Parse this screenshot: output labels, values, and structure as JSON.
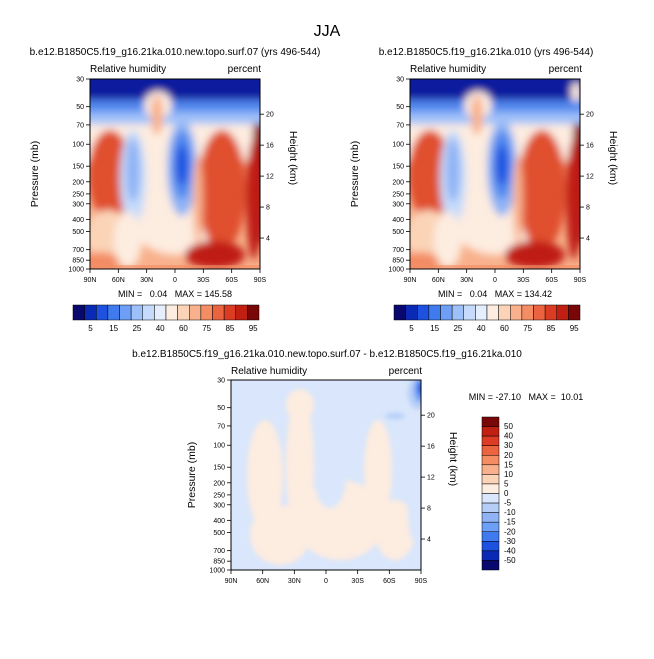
{
  "page_title": "JJA",
  "chart_data": [
    {
      "type": "heatmap",
      "title": "b.e12.B1850C5.f19_g16.21ka.010.new.topo.surf.07 (yrs 496-544)",
      "left_label": "Relative humidity",
      "right_label": "percent",
      "xlabel": "",
      "ylabel": "Pressure (mb)",
      "ylabel_right": "Height (km)",
      "x_ticks": [
        "90N",
        "60N",
        "30N",
        "0",
        "30S",
        "60S",
        "90S"
      ],
      "y_ticks": [
        "30",
        "50",
        "70",
        "100",
        "150",
        "200",
        "250",
        "300",
        "400",
        "500",
        "700",
        "850",
        "1000"
      ],
      "height_ticks": [
        "20",
        "16",
        "12",
        "8",
        "4"
      ],
      "stats": "MIN =   0.04   MAX = 145.58",
      "min": 0.04,
      "max": 145.58
    },
    {
      "type": "heatmap",
      "title": "b.e12.B1850C5.f19_g16.21ka.010 (yrs 496-544)",
      "left_label": "Relative humidity",
      "right_label": "percent",
      "xlabel": "",
      "ylabel": "Pressure (mb)",
      "ylabel_right": "Height (km)",
      "x_ticks": [
        "90N",
        "60N",
        "30N",
        "0",
        "30S",
        "60S",
        "90S"
      ],
      "y_ticks": [
        "30",
        "50",
        "70",
        "100",
        "150",
        "200",
        "250",
        "300",
        "400",
        "500",
        "700",
        "850",
        "1000"
      ],
      "height_ticks": [
        "20",
        "16",
        "12",
        "8",
        "4"
      ],
      "stats": "MIN =   0.04   MAX = 134.42",
      "min": 0.04,
      "max": 134.42
    },
    {
      "type": "heatmap",
      "title": "b.e12.B1850C5.f19_g16.21ka.010.new.topo.surf.07 - b.e12.B1850C5.f19_g16.21ka.010",
      "left_label": "Relative humidity",
      "right_label": "percent",
      "xlabel": "",
      "ylabel": "Pressure (mb)",
      "ylabel_right": "Height (km)",
      "x_ticks": [
        "90N",
        "60N",
        "30N",
        "0",
        "30S",
        "60S",
        "90S"
      ],
      "y_ticks": [
        "30",
        "50",
        "70",
        "100",
        "150",
        "200",
        "250",
        "300",
        "400",
        "500",
        "700",
        "850",
        "1000"
      ],
      "height_ticks": [
        "20",
        "16",
        "12",
        "8",
        "4"
      ],
      "stats": "MIN = -27.10   MAX =  10.01",
      "min": -27.1,
      "max": 10.01
    }
  ],
  "colorbar_top": {
    "labels": [
      "5",
      "15",
      "25",
      "40",
      "60",
      "75",
      "85",
      "95"
    ],
    "colors": [
      "#08086e",
      "#0a2ab5",
      "#1d52e0",
      "#3f7bef",
      "#6e9ff6",
      "#9ec0f9",
      "#c6dbfb",
      "#e4eefc",
      "#fdece0",
      "#fbd4b7",
      "#f8b18c",
      "#f48c64",
      "#ec6340",
      "#dc3c24",
      "#c01f12",
      "#7a0708"
    ]
  },
  "colorbar_diff": {
    "labels": [
      "50",
      "40",
      "30",
      "20",
      "15",
      "10",
      "5",
      "0",
      "-5",
      "-10",
      "-15",
      "-20",
      "-30",
      "-40",
      "-50"
    ],
    "colors": [
      "#7a0708",
      "#c01f12",
      "#dc3c24",
      "#ec6340",
      "#f48c64",
      "#f8b18c",
      "#fbd4b7",
      "#fdece0",
      "#d9e6fb",
      "#b5cef8",
      "#8fb3f4",
      "#6e9ff6",
      "#3f7bef",
      "#1d52e0",
      "#0a2ab5",
      "#08086e"
    ]
  },
  "palette": {
    "navy": "#0a1e9e",
    "blue": "#1d52e0",
    "mid_blue": "#4f86ee",
    "light_blue": "#8fb3f4",
    "pale_blue": "#c6dbfb",
    "very_pale_blue": "#d9e6fb",
    "cream": "#fdece0",
    "light_salmon": "#fbd4b7",
    "salmon": "#f8b18c",
    "orange": "#f48c64",
    "red": "#e0502f",
    "dark_red": "#c01f12",
    "maroon": "#8c0c0c"
  }
}
